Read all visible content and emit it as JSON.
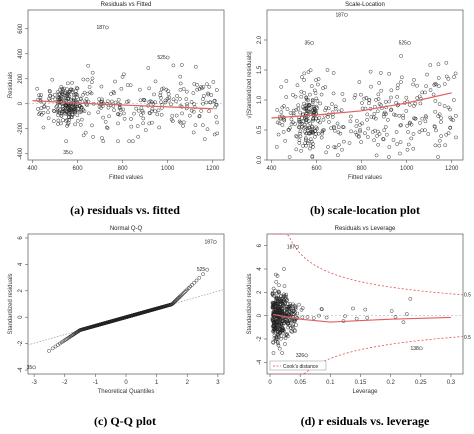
{
  "captions": [
    "(a) residuals vs. fitted",
    "(b) scale-location plot",
    "(c) Q-Q plot",
    "(d) r esiduals vs. leverage"
  ],
  "chart_data": [
    {
      "type": "scatter",
      "title": "Residuals vs Fitted",
      "xlabel": "Fitted values",
      "ylabel": "Residuals",
      "xlim": [
        380,
        1250
      ],
      "ylim": [
        -450,
        750
      ],
      "xticks": [
        400,
        600,
        800,
        1000,
        1200
      ],
      "yticks": [
        -400,
        -200,
        0,
        200,
        400,
        600
      ],
      "grid": false,
      "smooth_line": {
        "color": "#e06060",
        "x": [
          400,
          600,
          800,
          1000,
          1200
        ],
        "y": [
          25,
          5,
          -10,
          -25,
          -40
        ]
      },
      "reference_line": {
        "y": 0
      },
      "labeled_points": [
        {
          "label": "187",
          "x": 730,
          "y": 610
        },
        {
          "label": "525",
          "x": 1000,
          "y": 370
        },
        {
          "label": "35",
          "x": 570,
          "y": -390
        }
      ]
    },
    {
      "type": "scatter",
      "title": "Scale-Location",
      "xlabel": "Fitted values",
      "ylabel": "√|Standardized residuals|",
      "xlim": [
        380,
        1250
      ],
      "ylim": [
        0,
        2.5
      ],
      "xticks": [
        400,
        600,
        800,
        1000,
        1200
      ],
      "yticks": [
        0.0,
        0.5,
        1.0,
        1.5,
        2.0
      ],
      "grid": false,
      "smooth_line": {
        "color": "#e06060",
        "x": [
          400,
          600,
          800,
          1000,
          1200
        ],
        "y": [
          0.7,
          0.75,
          0.82,
          0.95,
          1.12
        ]
      },
      "labeled_points": [
        {
          "label": "187",
          "x": 730,
          "y": 2.42
        },
        {
          "label": "35",
          "x": 580,
          "y": 1.95
        },
        {
          "label": "525",
          "x": 1010,
          "y": 1.95
        }
      ]
    },
    {
      "type": "scatter",
      "title": "Normal Q-Q",
      "xlabel": "Theoretical Quantiles",
      "ylabel": "Standardized residuals",
      "xlim": [
        -3.2,
        3.2
      ],
      "ylim": [
        -4.3,
        6.3
      ],
      "xticks": [
        -3,
        -2,
        -1,
        0,
        1,
        2,
        3
      ],
      "yticks": [
        -4,
        -2,
        0,
        2,
        4,
        6
      ],
      "grid": false,
      "reference_line": {
        "style": "dotted",
        "color": "#999999",
        "x": [
          -3.2,
          3.2
        ],
        "y": [
          -2.1,
          2.1
        ]
      },
      "labeled_points": [
        {
          "label": "187",
          "x": 2.9,
          "y": 5.7
        },
        {
          "label": "525",
          "x": 2.65,
          "y": 3.6
        },
        {
          "label": "35",
          "x": -3.0,
          "y": -3.8
        }
      ]
    },
    {
      "type": "scatter",
      "title": "Residuals vs Leverage",
      "xlabel": "Leverage",
      "ylabel": "Standardized residuals",
      "xlim": [
        -0.005,
        0.32
      ],
      "ylim": [
        -5,
        7
      ],
      "xticks": [
        0.0,
        0.05,
        0.1,
        0.15,
        0.2,
        0.25,
        0.3
      ],
      "yticks": [
        -4,
        -2,
        0,
        2,
        4,
        6
      ],
      "grid": false,
      "smooth_line": {
        "color": "#e06060"
      },
      "cooks_contours": [
        0.5,
        0.5
      ],
      "contour_labels": [
        "0.5",
        "0.5"
      ],
      "legend": {
        "position": "bottom-left",
        "entries": [
          "Cook's distance"
        ]
      },
      "labeled_points": [
        {
          "label": "187",
          "x": 0.045,
          "y": 5.9
        },
        {
          "label": "326",
          "x": 0.06,
          "y": -3.4
        },
        {
          "label": "138",
          "x": 0.25,
          "y": -2.8
        }
      ]
    }
  ]
}
